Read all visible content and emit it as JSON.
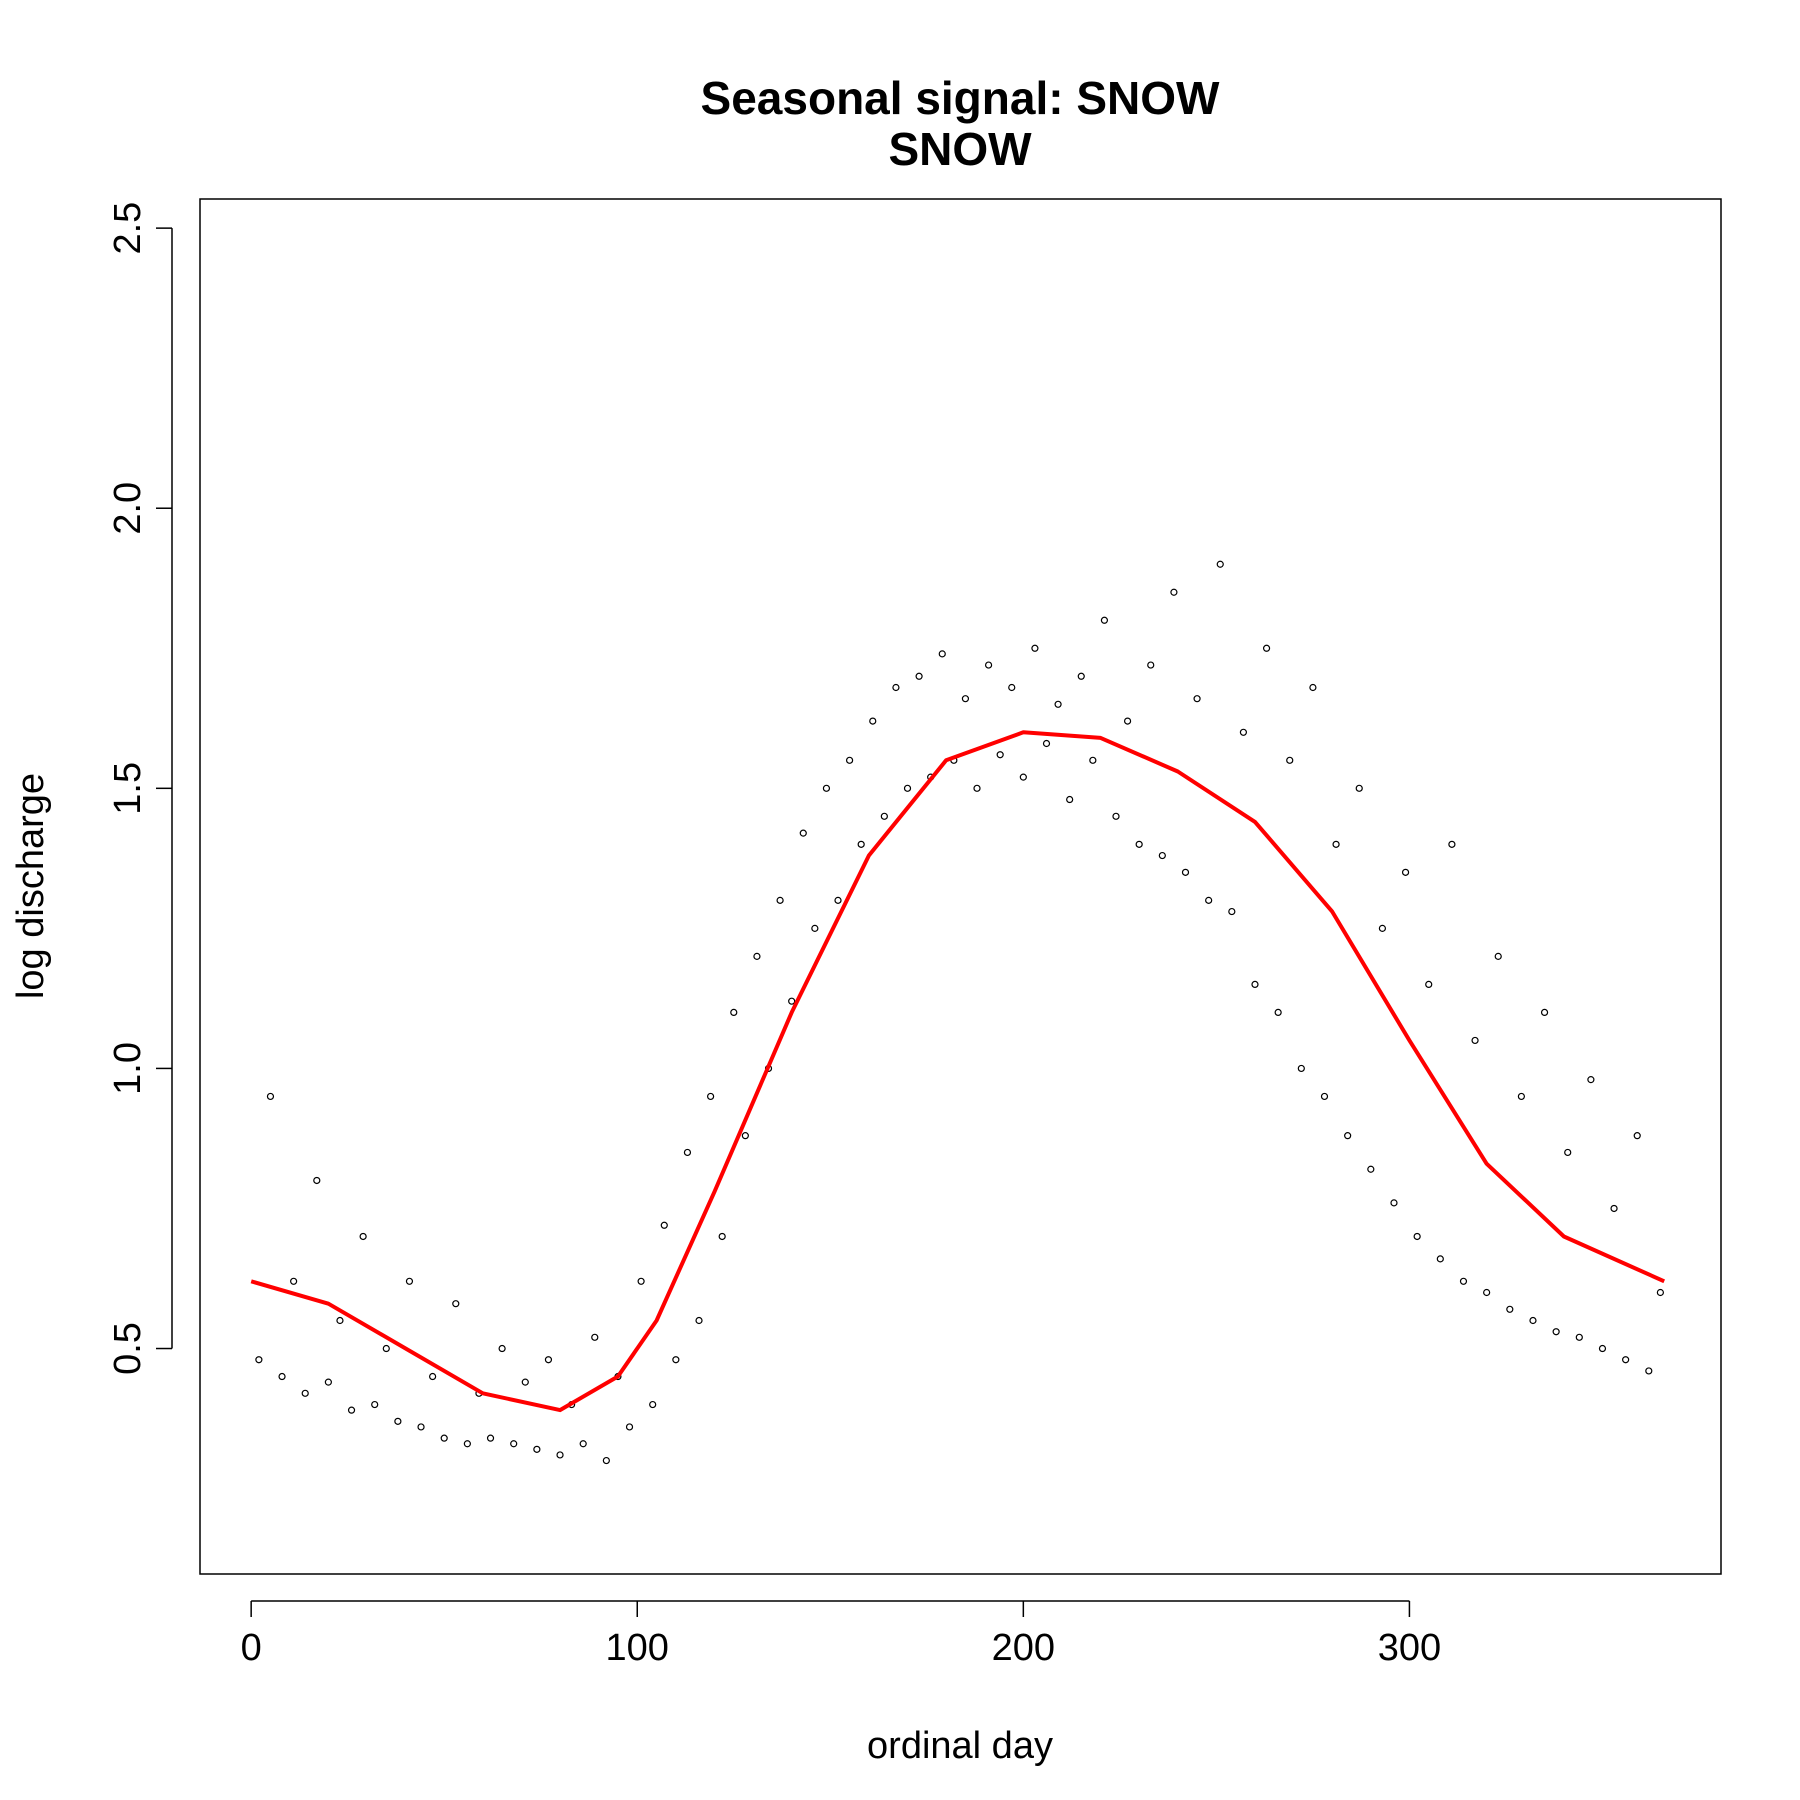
{
  "chart_data": {
    "type": "scatter",
    "title": "Seasonal signal: SNOW",
    "subtitle": "SNOW",
    "x_label": "ordinal day",
    "y_label": "log discharge",
    "xlim": [
      -13.25,
      380.7
    ],
    "ylim": [
      0.0975,
      2.552
    ],
    "xticks": [
      0,
      100,
      200,
      300
    ],
    "yticks": [
      0.5,
      {
        "value": 1,
        "label": "1.0"
      },
      1.5,
      {
        "value": 2,
        "label": "2.0"
      },
      2.5
    ],
    "point_color": "#000000",
    "x": [
      2,
      5,
      8,
      11,
      14,
      17,
      20,
      23,
      26,
      29,
      32,
      35,
      38,
      41,
      44,
      47,
      50,
      53,
      56,
      59,
      62,
      65,
      68,
      71,
      74,
      77,
      80,
      83,
      86,
      89,
      92,
      95,
      98,
      101,
      104,
      107,
      110,
      113,
      116,
      119,
      122,
      125,
      128,
      131,
      134,
      137,
      140,
      143,
      146,
      149,
      152,
      155,
      158,
      161,
      164,
      167,
      170,
      173,
      176,
      179,
      182,
      185,
      188,
      191,
      194,
      197,
      200,
      203,
      206,
      209,
      212,
      215,
      218,
      221,
      224,
      227,
      230,
      233,
      236,
      239,
      242,
      245,
      248,
      251,
      254,
      257,
      260,
      263,
      266,
      269,
      272,
      275,
      278,
      281,
      284,
      287,
      290,
      293,
      296,
      299,
      302,
      305,
      308,
      311,
      314,
      317,
      320,
      323,
      326,
      329,
      332,
      335,
      338,
      341,
      344,
      347,
      350,
      353,
      356,
      359,
      362,
      365
    ],
    "values": [
      0.48,
      0.95,
      0.45,
      0.62,
      0.42,
      0.8,
      0.44,
      0.55,
      0.39,
      0.7,
      0.4,
      0.5,
      0.37,
      0.62,
      0.36,
      0.45,
      0.34,
      0.58,
      0.33,
      0.42,
      0.34,
      0.5,
      0.33,
      0.44,
      0.32,
      0.48,
      0.31,
      0.4,
      0.33,
      0.52,
      0.3,
      0.45,
      0.36,
      0.62,
      0.4,
      0.72,
      0.48,
      0.85,
      0.55,
      0.95,
      0.7,
      1.1,
      0.88,
      1.2,
      1.0,
      1.3,
      1.12,
      1.42,
      1.25,
      1.5,
      1.3,
      1.55,
      1.4,
      1.62,
      1.45,
      1.68,
      1.5,
      1.7,
      1.52,
      1.74,
      1.55,
      1.66,
      1.5,
      1.72,
      1.56,
      1.68,
      1.52,
      1.75,
      1.58,
      1.65,
      1.48,
      1.7,
      1.55,
      1.8,
      1.45,
      1.62,
      1.4,
      1.72,
      1.38,
      1.85,
      1.35,
      1.66,
      1.3,
      1.9,
      1.28,
      1.6,
      1.15,
      1.75,
      1.1,
      1.55,
      1.0,
      1.68,
      0.95,
      1.4,
      0.88,
      1.5,
      0.82,
      1.25,
      0.76,
      1.35,
      0.7,
      1.15,
      0.66,
      1.4,
      0.62,
      1.05,
      0.6,
      1.2,
      0.57,
      0.95,
      0.55,
      1.1,
      0.53,
      0.85,
      0.52,
      0.98,
      0.5,
      0.75,
      0.48,
      0.88,
      0.46,
      0.6
    ],
    "smooth": {
      "color": "#ff0000",
      "x": [
        0,
        20,
        40,
        60,
        80,
        95,
        105,
        120,
        140,
        160,
        180,
        200,
        220,
        240,
        260,
        280,
        300,
        320,
        340,
        366
      ],
      "values": [
        0.62,
        0.58,
        0.5,
        0.42,
        0.39,
        0.45,
        0.55,
        0.78,
        1.1,
        1.38,
        1.55,
        1.6,
        1.59,
        1.53,
        1.44,
        1.28,
        1.05,
        0.83,
        0.7,
        0.62
      ]
    }
  }
}
